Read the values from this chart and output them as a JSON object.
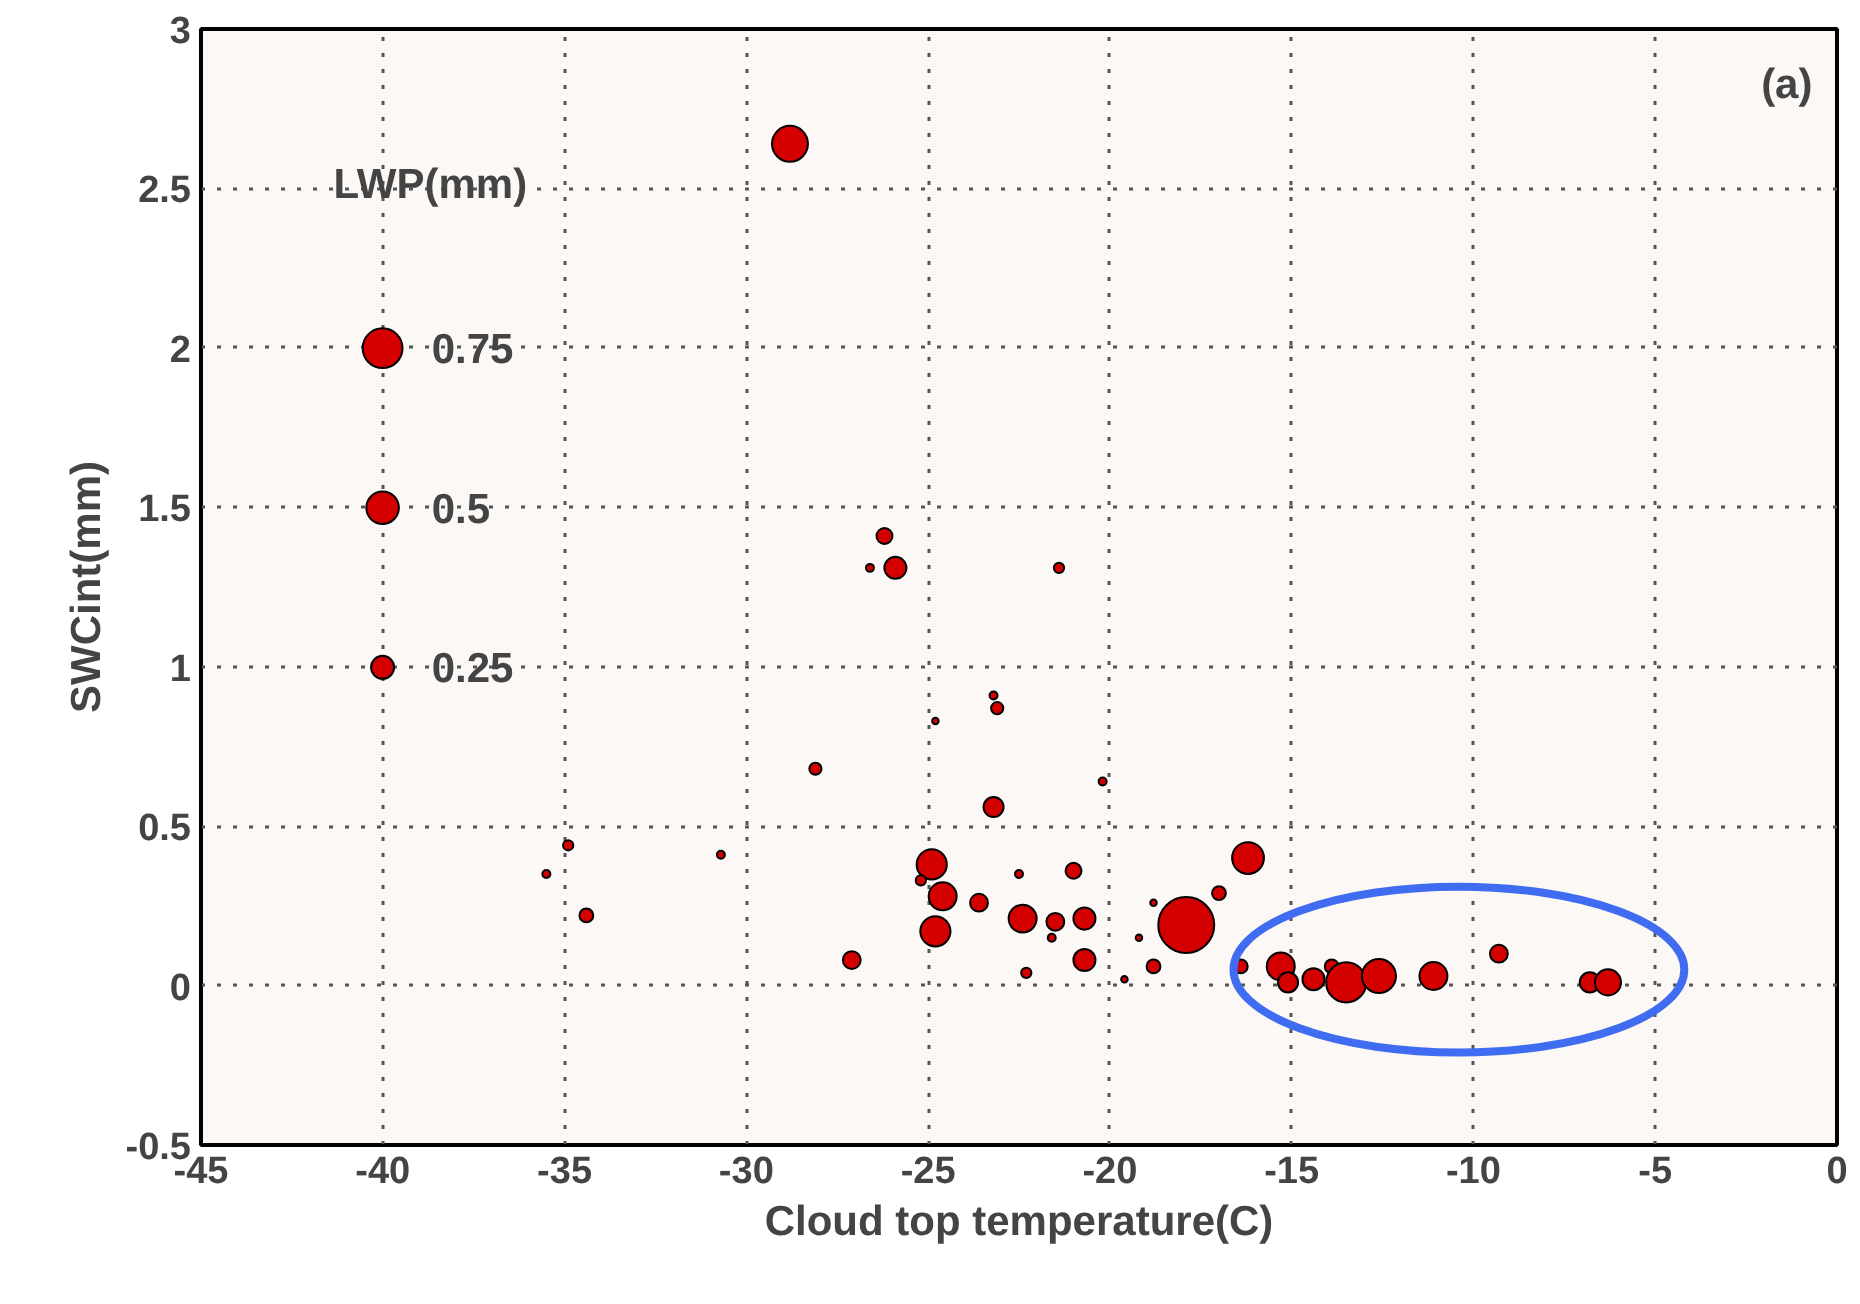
{
  "chart_data": {
    "type": "bubble",
    "xlabel": "Cloud top temperature(C)",
    "ylabel": "SWCint(mm)",
    "legend_title": "LWP(mm)",
    "annotations": [
      "(a)"
    ],
    "color": "#d40000",
    "x": [
      -28.8,
      -26.2,
      -26.6,
      -25.9,
      -21.4,
      -23.2,
      -23.1,
      -24.8,
      -28.1,
      -20.2,
      -23.2,
      -30.7,
      -24.9,
      -25.2,
      -24.6,
      -23.6,
      -24.8,
      -27.1,
      -22.5,
      -21.0,
      -22.4,
      -21.5,
      -21.6,
      -20.7,
      -20.7,
      -22.3,
      -17.9,
      -16.2,
      -17.0,
      -18.8,
      -19.2,
      -18.8,
      -19.6,
      -16.4,
      -15.3,
      -15.1,
      -14.4,
      -13.9,
      -13.5,
      -12.6,
      -11.1,
      -9.3,
      -6.8,
      -6.3,
      -34.9,
      -35.5,
      -34.4
    ],
    "values": [
      2.64,
      1.41,
      1.31,
      1.31,
      1.31,
      0.91,
      0.87,
      0.83,
      0.68,
      0.64,
      0.56,
      0.41,
      0.38,
      0.33,
      0.28,
      0.26,
      0.17,
      0.08,
      0.35,
      0.36,
      0.21,
      0.2,
      0.15,
      0.21,
      0.08,
      0.04,
      0.19,
      0.4,
      0.29,
      0.26,
      0.15,
      0.06,
      0.02,
      0.06,
      0.06,
      0.01,
      0.02,
      0.06,
      0.01,
      0.03,
      0.03,
      0.1,
      0.01,
      0.01,
      0.44,
      0.35,
      0.22
    ],
    "sizes": [
      0.61,
      0.12,
      0.03,
      0.23,
      0.05,
      0.03,
      0.07,
      0.02,
      0.07,
      0.03,
      0.19,
      0.03,
      0.43,
      0.05,
      0.37,
      0.15,
      0.43,
      0.15,
      0.03,
      0.12,
      0.37,
      0.15,
      0.03,
      0.23,
      0.23,
      0.05,
      1.48,
      0.48,
      0.09,
      0.02,
      0.02,
      0.09,
      0.02,
      0.09,
      0.37,
      0.19,
      0.23,
      0.09,
      0.76,
      0.55,
      0.37,
      0.15,
      0.19,
      0.32,
      0.05,
      0.03,
      0.09
    ],
    "size_legend": [
      0.75,
      0.5,
      0.25
    ],
    "xlim": [
      -45,
      0
    ],
    "ylim": [
      -0.5,
      3
    ],
    "xticks": [
      -45,
      -40,
      -35,
      -30,
      -25,
      -20,
      -15,
      -10,
      -5,
      0
    ],
    "yticks": [
      -0.5,
      0,
      0.5,
      1,
      1.5,
      2,
      2.5,
      3
    ],
    "grid": true
  }
}
